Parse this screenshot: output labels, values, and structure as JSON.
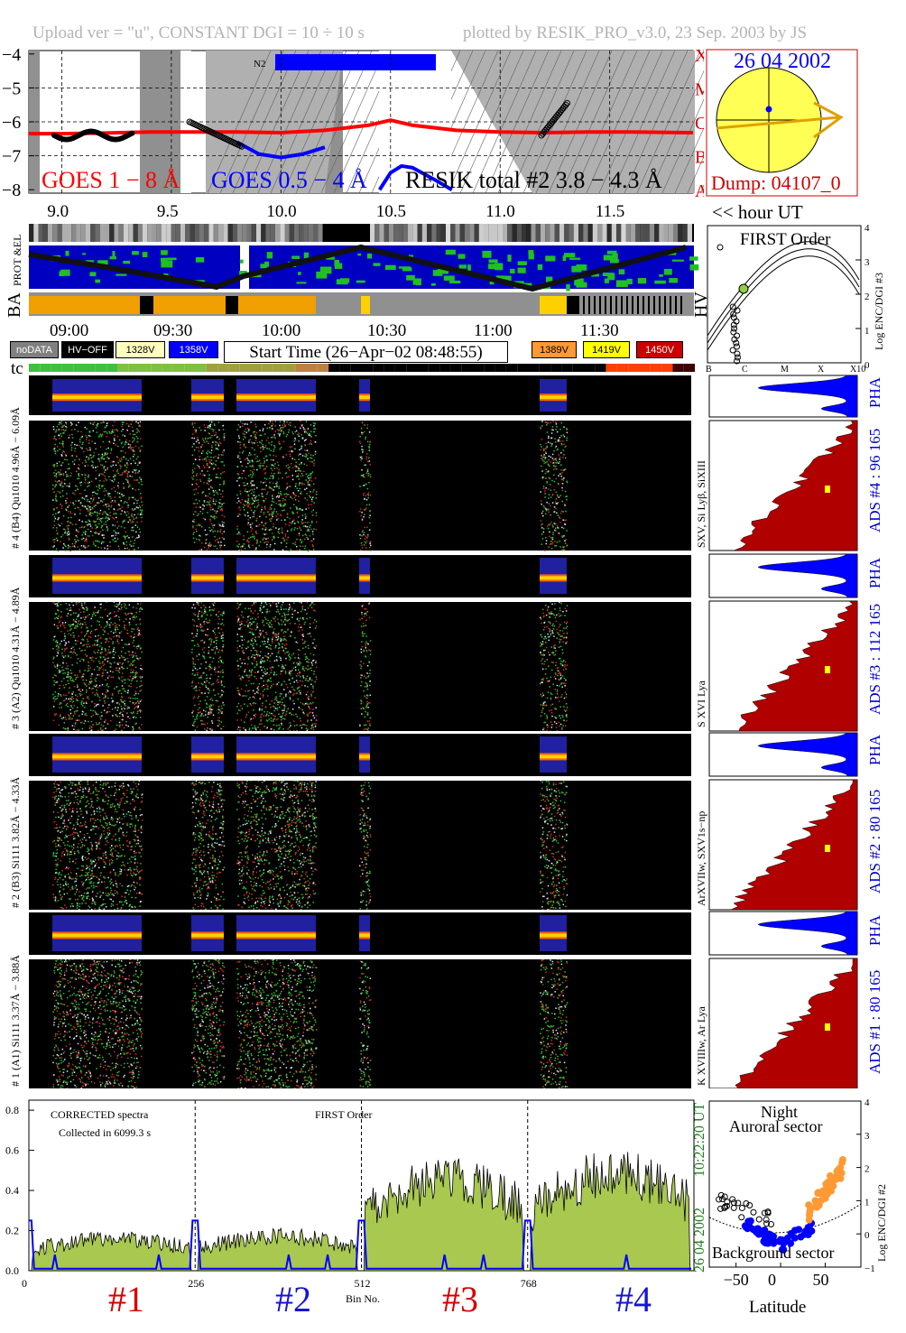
{
  "header": {
    "left": "Upload ver = \"u\", CONSTANT  DGI =  10 ÷  10 s",
    "right": "plotted by RESIK_PRO_v3.0, 23 Sep. 2003 by JS"
  },
  "goes_panel": {
    "y_ticks": [
      "−4",
      "−5",
      "−6",
      "−7",
      "−8"
    ],
    "class_letters": [
      "X",
      "M",
      "C",
      "B",
      "A"
    ],
    "x_ticks": [
      "9.0",
      "9.5",
      "10.0",
      "10.5",
      "11.0",
      "11.5"
    ],
    "hour_label": "<< hour UT",
    "goes_long_label": "GOES 1 − 8 Å",
    "goes_short_label": "GOES 0.5 − 4 Å",
    "resik_label": "RESIK total #2  3.8 − 4.3 Å",
    "flag_label": "N2",
    "colors": {
      "goes_long": "#ff0000",
      "goes_short": "#0000ff",
      "band": "#0000ff"
    }
  },
  "sun_panel": {
    "date": "26 04 2002",
    "dump": "Dump: 04107_0",
    "colors": {
      "disk": "#ffff55",
      "border": "#ff0000",
      "arrow": "#e0a000"
    }
  },
  "orbit_panel": {
    "labels": {
      "prot_el": "PROT  &EL",
      "ba": "BA",
      "hv": "HV"
    }
  },
  "time_axis": {
    "ticks": [
      "09:00",
      "09:30",
      "10:00",
      "10:30",
      "11:00",
      "11:30"
    ],
    "start_time": "Start Time (26−Apr−02 08:48:55)",
    "tc": "tc"
  },
  "legend": [
    {
      "label": "noDATA",
      "bg": "#808080",
      "fg": "#ffffff"
    },
    {
      "label": "HV−OFF",
      "bg": "#000000",
      "fg": "#ffffff"
    },
    {
      "label": "1328V",
      "bg": "#ffffc0",
      "fg": "#000000"
    },
    {
      "label": "1358V",
      "bg": "#0000ff",
      "fg": "#ffffff"
    },
    {
      "label": "1389V",
      "bg": "#ff9933",
      "fg": "#000000"
    },
    {
      "label": "1419V",
      "bg": "#ffff00",
      "fg": "#000000"
    },
    {
      "label": "1450V",
      "bg": "#cc0000",
      "fg": "#ffffff"
    }
  ],
  "first_order_panel": {
    "title": "FIRST Order",
    "y_ticks": [
      "4",
      "3",
      "2",
      "1",
      "0"
    ],
    "x_ticks": [
      "B",
      "C",
      "M",
      "X",
      "X10"
    ],
    "y_label": "Log ENC/DGI #3"
  },
  "channels": [
    {
      "pha_label": "# 4 (B4) Qu1010  4.96Å − 6.09Å",
      "spec_label": "SXV, Si Lyβ, SiXIII",
      "ads": "ADS #4 :  96 165"
    },
    {
      "pha_label": "# 3 (A2) Qu1010  4.31Å − 4.89Å",
      "spec_label": "S XVI Lya",
      "ads": "ADS #3 :  112 165"
    },
    {
      "pha_label": "# 2 (B3) Si111  3.82Å − 4.33Å",
      "spec_label": "ArXVIIw, SXV1s−np",
      "ads": "ADS #2 :  80 165"
    },
    {
      "pha_label": "# 1 (A1) Si111  3.37Å − 3.88Å",
      "spec_label": "K XVIIIw, Ar Lya",
      "ads": "ADS #1 :  80 165"
    }
  ],
  "pha_label": "PHA",
  "spectrum_panel": {
    "y_ticks": [
      "0.8",
      "0.6",
      "0.4",
      "0.2",
      "0.0"
    ],
    "x_ticks": [
      "0",
      "256",
      "512",
      "768"
    ],
    "x_label": "Bin No.",
    "corrected": "CORRECTED spectra",
    "collected": "Collected in  6099.3 s",
    "first_order": "FIRST Order",
    "time_stamp": "10:22:20 UT",
    "date_stamp": "26 04 2002",
    "channel_labels": [
      {
        "text": "#1",
        "color": "#d40000"
      },
      {
        "text": "#2",
        "color": "#1515d4"
      },
      {
        "text": "#3",
        "color": "#d40000"
      },
      {
        "text": "#4",
        "color": "#1515d4"
      }
    ]
  },
  "latitude_panel": {
    "night": "Night",
    "auroral": "Auroral sector",
    "background": "Background sector",
    "x_ticks": [
      "−50",
      "0",
      "50"
    ],
    "y_ticks": [
      "4",
      "3",
      "2",
      "1",
      "0",
      "−1"
    ],
    "x_label": "Latitude",
    "y_label": "Log ENC/DGI #2"
  },
  "chart_data": [
    {
      "type": "line",
      "title": "",
      "xlabel": "hour UT",
      "ylabel": "",
      "xlim": [
        8.85,
        11.88
      ],
      "ylim": [
        -8.1,
        -3.9
      ],
      "series": [
        {
          "name": "GOES 1 − 8 Å",
          "x": [
            8.85,
            9.0,
            9.2,
            9.4,
            9.6,
            9.8,
            10.0,
            10.2,
            10.4,
            10.5,
            10.6,
            10.8,
            11.0,
            11.2,
            11.4,
            11.6,
            11.88
          ],
          "y": [
            -6.35,
            -6.35,
            -6.33,
            -6.3,
            -6.3,
            -6.3,
            -6.32,
            -6.25,
            -6.1,
            -5.95,
            -6.1,
            -6.25,
            -6.3,
            -6.32,
            -6.3,
            -6.3,
            -6.32
          ]
        },
        {
          "name": "GOES 0.5 − 4 Å",
          "x": [
            9.8,
            9.9,
            10.0,
            10.1,
            10.2
          ],
          "y": [
            -6.6,
            -6.95,
            -7.05,
            -6.95,
            -6.75
          ]
        },
        {
          "name": "RESIK total #2  3.8 − 4.3 Å",
          "x": [
            10.45,
            10.5,
            10.55,
            10.6,
            10.7,
            10.78
          ],
          "y": [
            -8.0,
            -7.5,
            -7.3,
            -7.35,
            -7.7,
            -8.0
          ]
        }
      ]
    },
    {
      "type": "area",
      "title": "",
      "xlabel": "Bin No.",
      "ylabel": "",
      "xlim": [
        0,
        1024
      ],
      "ylim": [
        0,
        0.85
      ],
      "channel_ranges": [
        [
          0,
          256
        ],
        [
          256,
          512
        ],
        [
          512,
          768
        ],
        [
          768,
          1024
        ]
      ],
      "channel_levels": [
        0.16,
        0.17,
        0.45,
        0.48
      ]
    }
  ]
}
